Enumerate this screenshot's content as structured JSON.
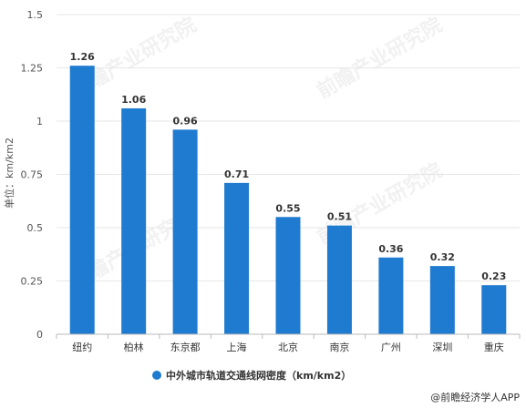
{
  "chart_data": {
    "type": "bar",
    "categories": [
      "纽约",
      "柏林",
      "东京都",
      "上海",
      "北京",
      "南京",
      "广州",
      "深圳",
      "重庆"
    ],
    "series": [
      {
        "name": "中外城市轨道交通线网密度（km/km2）",
        "values": [
          1.26,
          1.06,
          0.96,
          0.71,
          0.55,
          0.51,
          0.36,
          0.32,
          0.23
        ]
      }
    ],
    "data_labels": [
      "1.26",
      "1.06",
      "0.96",
      "0.71",
      "0.55",
      "0.51",
      "0.36",
      "0.32",
      "0.23"
    ],
    "ylabel": "单位：km/km2",
    "xlabel": "",
    "ylim": [
      0,
      1.5
    ],
    "yticks": [
      0,
      0.25,
      0.5,
      0.75,
      1,
      1.25,
      1.5
    ],
    "ytick_labels": [
      "0",
      "0.25",
      "0.5",
      "0.75",
      "1",
      "1.25",
      "1.5"
    ],
    "grid": true,
    "legend_position": "bottom",
    "bar_color": "#1f7bd0"
  },
  "watermark": "前瞻产业研究院",
  "credit": "@前瞻经济学人APP"
}
